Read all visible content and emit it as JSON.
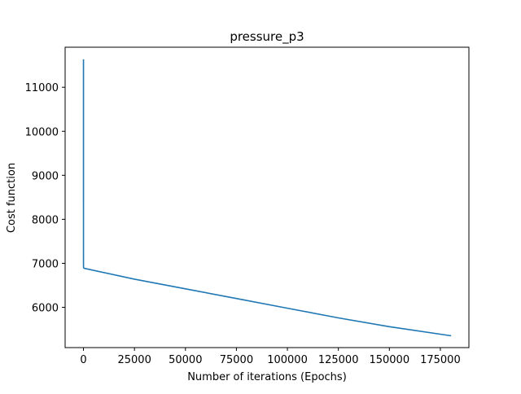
{
  "chart_data": {
    "type": "line",
    "title": "pressure_p3",
    "xlabel": "Number of iterations (Epochs)",
    "ylabel": "Cost function",
    "xlim": [
      -9000,
      189000
    ],
    "ylim": [
      5085,
      11910
    ],
    "xticks": [
      0,
      25000,
      50000,
      75000,
      100000,
      125000,
      150000,
      175000
    ],
    "yticks": [
      6000,
      7000,
      8000,
      9000,
      10000,
      11000
    ],
    "grid": false,
    "legend": "none",
    "series": [
      {
        "color": "#1f77b4",
        "x": [
          0,
          1,
          2,
          5,
          10,
          20,
          50,
          100,
          200,
          500,
          1000,
          25000,
          50000,
          75000,
          100000,
          125000,
          150000,
          180000
        ],
        "y": [
          11620,
          10000,
          8500,
          7400,
          7000,
          6920,
          6900,
          6895,
          6890,
          6885,
          6880,
          6640,
          6420,
          6200,
          5980,
          5760,
          5560,
          5355
        ]
      }
    ]
  }
}
